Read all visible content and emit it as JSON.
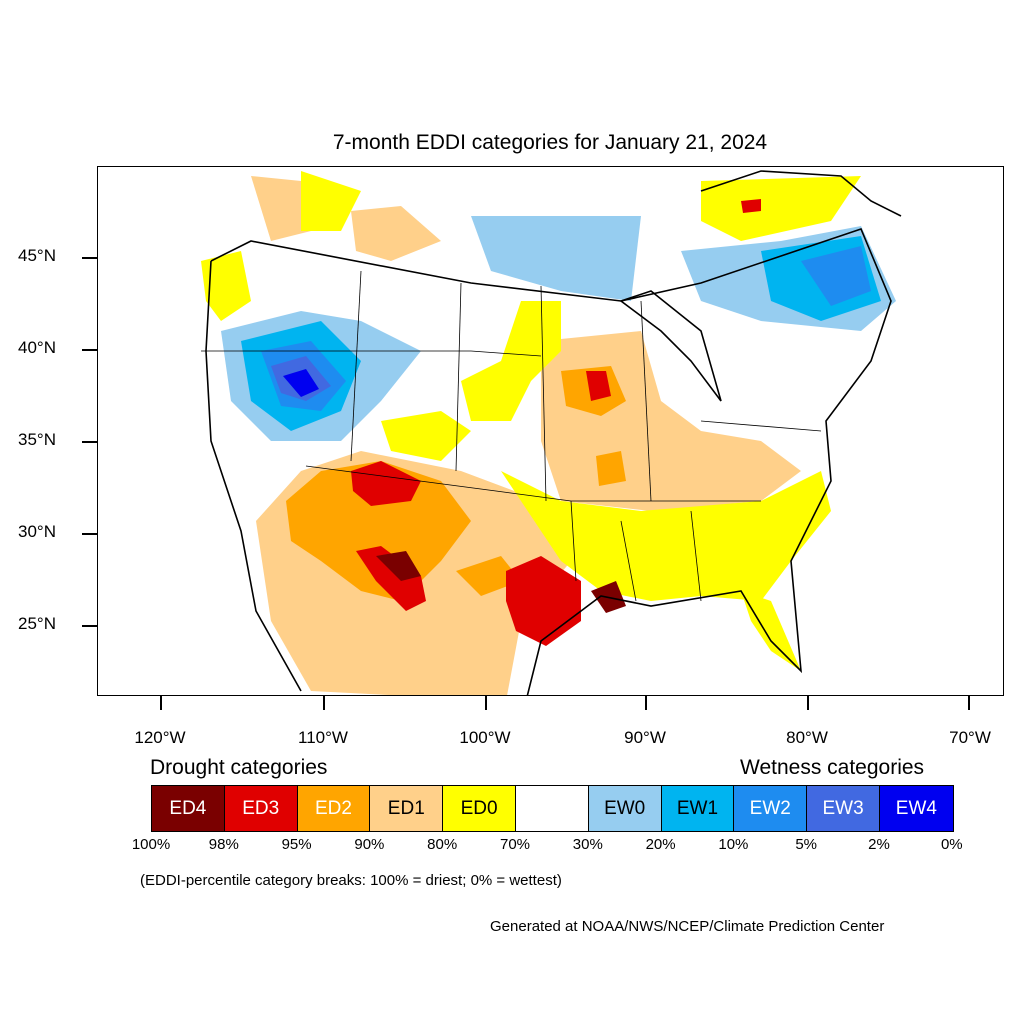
{
  "title": "7-month EDDI categories for January 21, 2024",
  "lat_labels": [
    "45°N",
    "40°N",
    "35°N",
    "30°N",
    "25°N"
  ],
  "lon_labels": [
    "120°W",
    "110°W",
    "100°W",
    "90°W",
    "80°W",
    "70°W"
  ],
  "legend": {
    "drought_heading": "Drought categories",
    "wetness_heading": "Wetness categories",
    "categories": [
      {
        "label": "ED4",
        "color": "#7a0000",
        "text_color": "#ffffff"
      },
      {
        "label": "ED3",
        "color": "#e00000",
        "text_color": "#ffffff"
      },
      {
        "label": "ED2",
        "color": "#ffa500",
        "text_color": "#ffffff"
      },
      {
        "label": "ED1",
        "color": "#ffd08a",
        "text_color": "#000000"
      },
      {
        "label": "ED0",
        "color": "#ffff00",
        "text_color": "#000000"
      },
      {
        "label": "",
        "color": "#ffffff",
        "text_color": "#000000"
      },
      {
        "label": "EW0",
        "color": "#96cdf0",
        "text_color": "#000000"
      },
      {
        "label": "EW1",
        "color": "#00b4f0",
        "text_color": "#000000"
      },
      {
        "label": "EW2",
        "color": "#1e8cf0",
        "text_color": "#ffffff"
      },
      {
        "label": "EW3",
        "color": "#4169e1",
        "text_color": "#ffffff"
      },
      {
        "label": "EW4",
        "color": "#0000f0",
        "text_color": "#ffffff"
      }
    ],
    "percent_breaks": [
      "100%",
      "98%",
      "95%",
      "90%",
      "80%",
      "70%",
      "30%",
      "20%",
      "10%",
      "5%",
      "2%",
      "0%"
    ]
  },
  "note": "(EDDI-percentile category breaks: 100% = driest; 0% = wettest)",
  "credit": "Generated at NOAA/NWS/NCEP/Climate Prediction Center"
}
